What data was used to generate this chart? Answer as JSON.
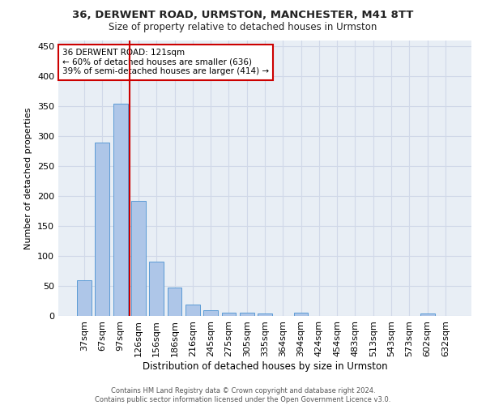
{
  "title_line1": "36, DERWENT ROAD, URMSTON, MANCHESTER, M41 8TT",
  "title_line2": "Size of property relative to detached houses in Urmston",
  "xlabel": "Distribution of detached houses by size in Urmston",
  "ylabel": "Number of detached properties",
  "categories": [
    "37sqm",
    "67sqm",
    "97sqm",
    "126sqm",
    "156sqm",
    "186sqm",
    "216sqm",
    "245sqm",
    "275sqm",
    "305sqm",
    "335sqm",
    "364sqm",
    "394sqm",
    "424sqm",
    "454sqm",
    "483sqm",
    "513sqm",
    "543sqm",
    "573sqm",
    "602sqm",
    "632sqm"
  ],
  "values": [
    60,
    290,
    355,
    192,
    91,
    47,
    19,
    9,
    5,
    5,
    4,
    0,
    5,
    0,
    0,
    0,
    0,
    0,
    0,
    4,
    0
  ],
  "bar_color": "#aec6e8",
  "bar_edge_color": "#5b9bd5",
  "grid_color": "#d0d8e8",
  "background_color": "#e8eef5",
  "vline_color": "#cc0000",
  "annotation_line1": "36 DERWENT ROAD: 121sqm",
  "annotation_line2": "← 60% of detached houses are smaller (636)",
  "annotation_line3": "39% of semi-detached houses are larger (414) →",
  "annotation_box_color": "#ffffff",
  "annotation_box_edge": "#cc0000",
  "footer_text": "Contains HM Land Registry data © Crown copyright and database right 2024.\nContains public sector information licensed under the Open Government Licence v3.0.",
  "ylim": [
    0,
    460
  ],
  "yticks": [
    0,
    50,
    100,
    150,
    200,
    250,
    300,
    350,
    400,
    450
  ]
}
